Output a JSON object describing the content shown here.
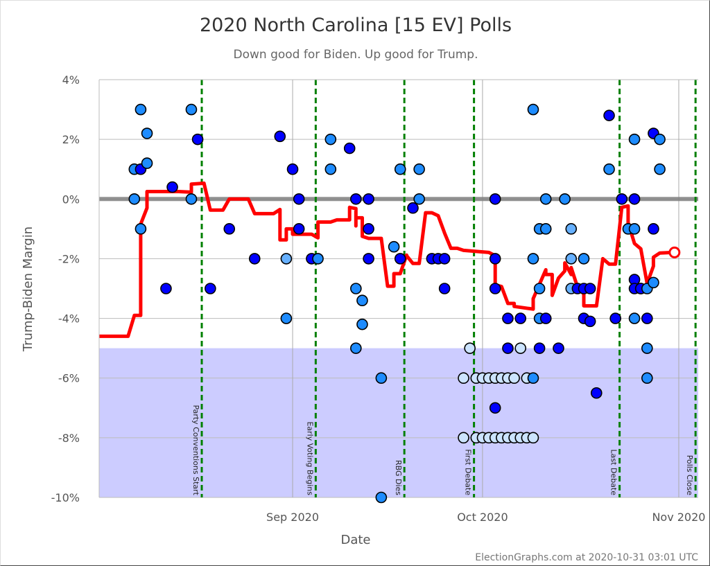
{
  "chart_data": {
    "type": "scatter",
    "title": "2020 North Carolina [15 EV] Polls",
    "subtitle": "Down good for Biden. Up good for Trump.",
    "xlabel": "Date",
    "ylabel": "Trump-Biden Margin",
    "footer": "ElectionGraphs.com at 2020-10-31 03:01 UTC",
    "xlim": [
      "2020-08-01",
      "2020-11-04"
    ],
    "ylim": [
      -10,
      4
    ],
    "y_ticks": [
      4,
      2,
      0,
      -2,
      -4,
      -6,
      -8,
      -10
    ],
    "y_tick_labels": [
      "4%",
      "2%",
      "0%",
      "-2%",
      "-4%",
      "-6%",
      "-8%",
      "-10%"
    ],
    "x_ticks": [
      {
        "date": "2020-09-01",
        "label": "Sep 2020"
      },
      {
        "date": "2020-10-01",
        "label": "Oct 2020"
      },
      {
        "date": "2020-11-01",
        "label": "Nov 2020"
      }
    ],
    "grid": true,
    "shaded_region": {
      "from": -10,
      "to": -5,
      "color": "#ccccff"
    },
    "zero_line_color": "#808080",
    "colors": {
      "d": "#0000ff",
      "m": "#1e8cff",
      "x": "#66b0ff",
      "l": "#cce4ff",
      "trend": "#ff0000",
      "event": "#008000"
    },
    "events": [
      {
        "date": "2020-08-17",
        "label": "Party Conventions Start"
      },
      {
        "date": "2020-09-04",
        "label": "Early Voting Begins"
      },
      {
        "date": "2020-09-18",
        "label": "RBG Dies"
      },
      {
        "date": "2020-09-29",
        "label": "First Debate"
      },
      {
        "date": "2020-10-22",
        "label": "Last Debate"
      },
      {
        "date": "2020-11-03",
        "label": "Polls Close"
      }
    ],
    "polls": [
      [
        "2020-08-07",
        1,
        "m"
      ],
      [
        "2020-08-07",
        0,
        "m"
      ],
      [
        "2020-08-08",
        3,
        "m"
      ],
      [
        "2020-08-08",
        1,
        "d"
      ],
      [
        "2020-08-08",
        -1,
        "m"
      ],
      [
        "2020-08-09",
        2.2,
        "m"
      ],
      [
        "2020-08-09",
        1.2,
        "m"
      ],
      [
        "2020-08-13",
        0.4,
        "d"
      ],
      [
        "2020-08-12",
        -3,
        "d"
      ],
      [
        "2020-08-16",
        3,
        "m"
      ],
      [
        "2020-08-16",
        0,
        "m"
      ],
      [
        "2020-08-17",
        2,
        "d"
      ],
      [
        "2020-08-19",
        -3,
        "d"
      ],
      [
        "2020-08-22",
        -1,
        "d"
      ],
      [
        "2020-08-26",
        -2,
        "d"
      ],
      [
        "2020-08-30",
        2.1,
        "d"
      ],
      [
        "2020-08-31",
        -4,
        "m"
      ],
      [
        "2020-08-31",
        -2,
        "x"
      ],
      [
        "2020-09-01",
        1,
        "d"
      ],
      [
        "2020-09-02",
        0,
        "d"
      ],
      [
        "2020-09-02",
        -1,
        "d"
      ],
      [
        "2020-09-04",
        -2,
        "d"
      ],
      [
        "2020-09-05",
        -2,
        "m"
      ],
      [
        "2020-09-07",
        2,
        "m"
      ],
      [
        "2020-09-07",
        1,
        "m"
      ],
      [
        "2020-09-10",
        1.7,
        "d"
      ],
      [
        "2020-09-11",
        0,
        "d"
      ],
      [
        "2020-09-11",
        -3,
        "m"
      ],
      [
        "2020-09-11",
        -5,
        "m"
      ],
      [
        "2020-09-12",
        -3.4,
        "m"
      ],
      [
        "2020-09-12",
        -4.2,
        "m"
      ],
      [
        "2020-09-13",
        0,
        "d"
      ],
      [
        "2020-09-13",
        -1,
        "d"
      ],
      [
        "2020-09-13",
        -2,
        "d"
      ],
      [
        "2020-09-15",
        -6,
        "m"
      ],
      [
        "2020-09-15",
        -10,
        "m"
      ],
      [
        "2020-09-17",
        -1.6,
        "m"
      ],
      [
        "2020-09-18",
        1,
        "m"
      ],
      [
        "2020-09-18",
        -2,
        "d"
      ],
      [
        "2020-09-20",
        -0.3,
        "d"
      ],
      [
        "2020-09-21",
        1,
        "m"
      ],
      [
        "2020-09-21",
        0,
        "m"
      ],
      [
        "2020-09-23",
        -2,
        "d"
      ],
      [
        "2020-09-24",
        -2,
        "d"
      ],
      [
        "2020-09-25",
        -2,
        "d"
      ],
      [
        "2020-09-25",
        -3,
        "d"
      ],
      [
        "2020-09-28",
        -6,
        "l"
      ],
      [
        "2020-09-28",
        -8,
        "l"
      ],
      [
        "2020-09-29",
        -5,
        "l"
      ],
      [
        "2020-09-30",
        -6,
        "l"
      ],
      [
        "2020-09-30",
        -8,
        "l"
      ],
      [
        "2020-10-01",
        -6,
        "l"
      ],
      [
        "2020-10-01",
        -8,
        "l"
      ],
      [
        "2020-10-02",
        -6,
        "l"
      ],
      [
        "2020-10-02",
        -8,
        "l"
      ],
      [
        "2020-10-03",
        -6,
        "l"
      ],
      [
        "2020-10-03",
        -8,
        "l"
      ],
      [
        "2020-10-03",
        0,
        "d"
      ],
      [
        "2020-10-03",
        -7,
        "d"
      ],
      [
        "2020-10-03",
        -2,
        "d"
      ],
      [
        "2020-10-03",
        -3,
        "d"
      ],
      [
        "2020-10-04",
        -6,
        "l"
      ],
      [
        "2020-10-04",
        -8,
        "l"
      ],
      [
        "2020-10-05",
        -6,
        "l"
      ],
      [
        "2020-10-05",
        -8,
        "l"
      ],
      [
        "2020-10-05",
        -4,
        "d"
      ],
      [
        "2020-10-05",
        -5,
        "d"
      ],
      [
        "2020-10-06",
        -6,
        "l"
      ],
      [
        "2020-10-06",
        -8,
        "l"
      ],
      [
        "2020-10-07",
        -8,
        "l"
      ],
      [
        "2020-10-07",
        -4,
        "d"
      ],
      [
        "2020-10-07",
        -5,
        "l"
      ],
      [
        "2020-10-08",
        -6,
        "l"
      ],
      [
        "2020-10-08",
        -8,
        "l"
      ],
      [
        "2020-10-09",
        -6,
        "m"
      ],
      [
        "2020-10-09",
        -8,
        "l"
      ],
      [
        "2020-10-09",
        3,
        "m"
      ],
      [
        "2020-10-09",
        -2,
        "m"
      ],
      [
        "2020-10-10",
        -1,
        "m"
      ],
      [
        "2020-10-10",
        -3,
        "m"
      ],
      [
        "2020-10-10",
        -4,
        "m"
      ],
      [
        "2020-10-10",
        -5,
        "d"
      ],
      [
        "2020-10-11",
        0,
        "m"
      ],
      [
        "2020-10-11",
        -1,
        "m"
      ],
      [
        "2020-10-11",
        -4,
        "d"
      ],
      [
        "2020-10-13",
        -5,
        "d"
      ],
      [
        "2020-10-14",
        0,
        "m"
      ],
      [
        "2020-10-15",
        -1,
        "x"
      ],
      [
        "2020-10-15",
        -2,
        "x"
      ],
      [
        "2020-10-15",
        -3,
        "x"
      ],
      [
        "2020-10-16",
        -3,
        "d"
      ],
      [
        "2020-10-17",
        -4,
        "d"
      ],
      [
        "2020-10-17",
        -3,
        "d"
      ],
      [
        "2020-10-17",
        -2,
        "m"
      ],
      [
        "2020-10-18",
        -3,
        "d"
      ],
      [
        "2020-10-18",
        -4.1,
        "d"
      ],
      [
        "2020-10-19",
        -6.5,
        "d"
      ],
      [
        "2020-10-21",
        1,
        "m"
      ],
      [
        "2020-10-21",
        2.8,
        "d"
      ],
      [
        "2020-10-22",
        -4,
        "d"
      ],
      [
        "2020-10-23",
        0,
        "d"
      ],
      [
        "2020-10-24",
        -1,
        "m"
      ],
      [
        "2020-10-25",
        0,
        "d"
      ],
      [
        "2020-10-25",
        -1,
        "m"
      ],
      [
        "2020-10-25",
        -2.7,
        "d"
      ],
      [
        "2020-10-25",
        -3,
        "d"
      ],
      [
        "2020-10-25",
        2,
        "m"
      ],
      [
        "2020-10-25",
        -4,
        "m"
      ],
      [
        "2020-10-26",
        -3,
        "d"
      ],
      [
        "2020-10-26",
        -3,
        "d"
      ],
      [
        "2020-10-27",
        -3,
        "m"
      ],
      [
        "2020-10-27",
        -4,
        "d"
      ],
      [
        "2020-10-27",
        -5,
        "m"
      ],
      [
        "2020-10-27",
        -6,
        "m"
      ],
      [
        "2020-10-28",
        2.2,
        "d"
      ],
      [
        "2020-10-28",
        -1,
        "d"
      ],
      [
        "2020-10-28",
        -2.8,
        "m"
      ],
      [
        "2020-10-29",
        2,
        "m"
      ],
      [
        "2020-10-29",
        1,
        "m"
      ]
    ],
    "trend": [
      [
        "2020-08-01",
        -4.6
      ],
      [
        "2020-08-06",
        -4.6
      ],
      [
        "2020-08-07",
        -3.9
      ],
      [
        "2020-08-08",
        -3.9
      ],
      [
        "2020-08-08",
        -1.9
      ],
      [
        "2020-08-08",
        -0.84
      ],
      [
        "2020-08-09",
        -0.3
      ],
      [
        "2020-08-09",
        0.25
      ],
      [
        "2020-08-14",
        0.25
      ],
      [
        "2020-08-16",
        0.23
      ],
      [
        "2020-08-16",
        0.5
      ],
      [
        "2020-08-18",
        0.53
      ],
      [
        "2020-08-19",
        -0.37
      ],
      [
        "2020-08-21",
        -0.37
      ],
      [
        "2020-08-22",
        0
      ],
      [
        "2020-08-25",
        0
      ],
      [
        "2020-08-26",
        -0.49
      ],
      [
        "2020-08-29",
        -0.49
      ],
      [
        "2020-08-30",
        -0.35
      ],
      [
        "2020-08-30",
        -1.37
      ],
      [
        "2020-08-31",
        -1.37
      ],
      [
        "2020-08-31",
        -1.0
      ],
      [
        "2020-09-01",
        -1.0
      ],
      [
        "2020-09-01",
        -1.18
      ],
      [
        "2020-09-04",
        -1.18
      ],
      [
        "2020-09-05",
        -1.3
      ],
      [
        "2020-09-05",
        -0.77
      ],
      [
        "2020-09-07",
        -0.77
      ],
      [
        "2020-09-08",
        -0.7
      ],
      [
        "2020-09-10",
        -0.7
      ],
      [
        "2020-09-10",
        -0.28
      ],
      [
        "2020-09-11",
        -0.32
      ],
      [
        "2020-09-11",
        -0.9
      ],
      [
        "2020-09-11",
        -0.63
      ],
      [
        "2020-09-12",
        -0.63
      ],
      [
        "2020-09-12",
        -1.25
      ],
      [
        "2020-09-13",
        -1.32
      ],
      [
        "2020-09-15",
        -1.32
      ],
      [
        "2020-09-16",
        -2.92
      ],
      [
        "2020-09-17",
        -2.92
      ],
      [
        "2020-09-17",
        -2.5
      ],
      [
        "2020-09-18",
        -2.5
      ],
      [
        "2020-09-19",
        -1.88
      ],
      [
        "2020-09-19",
        -1.9
      ],
      [
        "2020-09-20",
        -2.16
      ],
      [
        "2020-09-21",
        -2.16
      ],
      [
        "2020-09-22",
        -0.46
      ],
      [
        "2020-09-23",
        -0.46
      ],
      [
        "2020-09-24",
        -0.56
      ],
      [
        "2020-09-24",
        -0.56
      ],
      [
        "2020-09-25",
        -1.14
      ],
      [
        "2020-09-26",
        -1.65
      ],
      [
        "2020-09-27",
        -1.65
      ],
      [
        "2020-09-28",
        -1.72
      ],
      [
        "2020-10-02",
        -1.79
      ],
      [
        "2020-10-03",
        -1.9
      ],
      [
        "2020-10-03",
        -2.88
      ],
      [
        "2020-10-04",
        -2.93
      ],
      [
        "2020-10-05",
        -3.5
      ],
      [
        "2020-10-06",
        -3.5
      ],
      [
        "2020-10-06",
        -3.6
      ],
      [
        "2020-10-09",
        -3.69
      ],
      [
        "2020-10-09",
        -3.34
      ],
      [
        "2020-10-11",
        -2.37
      ],
      [
        "2020-10-11",
        -2.53
      ],
      [
        "2020-10-12",
        -2.53
      ],
      [
        "2020-10-12",
        -3.23
      ],
      [
        "2020-10-13",
        -2.65
      ],
      [
        "2020-10-14",
        -2.41
      ],
      [
        "2020-10-14",
        -2.14
      ],
      [
        "2020-10-15",
        -2.53
      ],
      [
        "2020-10-15",
        -2.3
      ],
      [
        "2020-10-16",
        -2.95
      ],
      [
        "2020-10-17",
        -3.18
      ],
      [
        "2020-10-17",
        -3.58
      ],
      [
        "2020-10-19",
        -3.58
      ],
      [
        "2020-10-20",
        -2.0
      ],
      [
        "2020-10-21",
        -2.18
      ],
      [
        "2020-10-22",
        -2.18
      ],
      [
        "2020-10-23",
        -0.28
      ],
      [
        "2020-10-24",
        -0.23
      ],
      [
        "2020-10-24",
        -0.79
      ],
      [
        "2020-10-25",
        -1.49
      ],
      [
        "2020-10-26",
        -1.67
      ],
      [
        "2020-10-27",
        -2.83
      ],
      [
        "2020-10-27",
        -2.83
      ],
      [
        "2020-10-28",
        -2.25
      ],
      [
        "2020-10-28",
        -1.95
      ],
      [
        "2020-10-29",
        -1.81
      ],
      [
        "2020-10-31",
        -1.79
      ]
    ]
  }
}
